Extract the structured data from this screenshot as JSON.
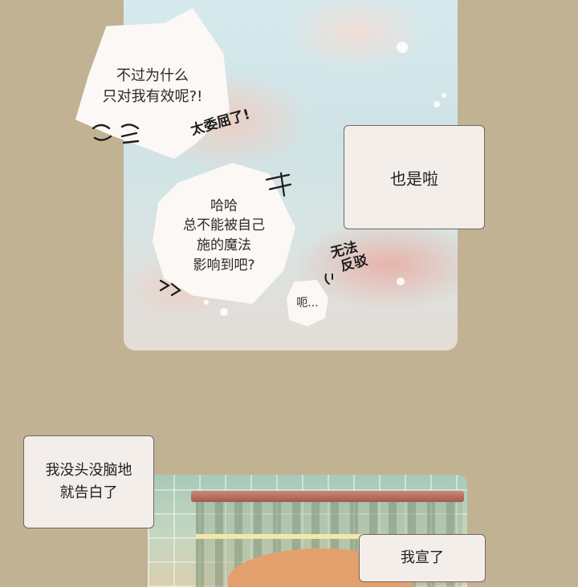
{
  "panel_top": {
    "bubble_question": [
      "不过为什么",
      "只对我有效呢?!"
    ],
    "sfx_wronged": "太委屈了!",
    "bubble_haha": [
      "哈哈",
      "总不能被自己",
      "施的魔法",
      "影响到吧?"
    ],
    "sfx_no_retort": [
      "无法",
      "反驳"
    ],
    "bubble_uh": "呃..."
  },
  "caption_right": "也是啦",
  "caption_left": [
    "我没头没脑地",
    "就告白了"
  ],
  "caption_bottom": "我宣了"
}
